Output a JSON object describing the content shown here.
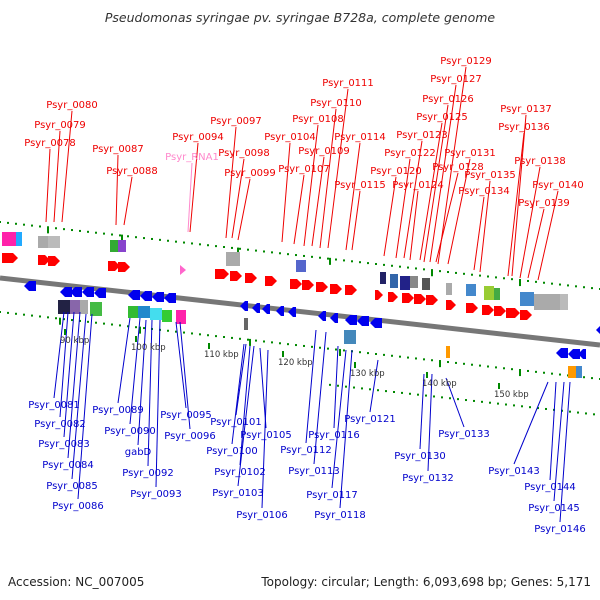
{
  "header": {
    "title": "Pseudomonas syringae pv. syringae B728a, complete genome"
  },
  "footer": {
    "accession": "Accession: NC_007005",
    "summary": "Topology: circular; Length: 6,093,698 bp; Genes: 5,171"
  },
  "colors": {
    "forward_arrow": "#ff0000",
    "reverse_arrow": "#0000ee",
    "forward_label": "#ee0000",
    "reverse_label": "#0000cc",
    "rna_label": "#ff88cc",
    "backbone": "#777777",
    "tick": "#008800"
  },
  "scale_labels": [
    "90 kbp",
    "100 kbp",
    "110 kbp",
    "120 kbp",
    "130 kbp",
    "140 kbp",
    "150 kbp"
  ],
  "forward_genes": [
    {
      "label": "Psyr_0078"
    },
    {
      "label": "Psyr_0079"
    },
    {
      "label": "Psyr_0080"
    },
    {
      "label": "Psyr_0087"
    },
    {
      "label": "Psyr_0088"
    },
    {
      "label": "Psyr_RNA1",
      "rna": true
    },
    {
      "label": "Psyr_0094"
    },
    {
      "label": "Psyr_0097"
    },
    {
      "label": "Psyr_0098"
    },
    {
      "label": "Psyr_0099"
    },
    {
      "label": "Psyr_0104"
    },
    {
      "label": "Psyr_0107"
    },
    {
      "label": "Psyr_0108"
    },
    {
      "label": "Psyr_0109"
    },
    {
      "label": "Psyr_0110"
    },
    {
      "label": "Psyr_0111"
    },
    {
      "label": "Psyr_0114"
    },
    {
      "label": "Psyr_0115"
    },
    {
      "label": "Psyr_0120"
    },
    {
      "label": "Psyr_0122"
    },
    {
      "label": "Psyr_0123"
    },
    {
      "label": "Psyr_0124"
    },
    {
      "label": "Psyr_0125"
    },
    {
      "label": "Psyr_0126"
    },
    {
      "label": "Psyr_0127"
    },
    {
      "label": "Psyr_0128"
    },
    {
      "label": "Psyr_0129"
    },
    {
      "label": "Psyr_0131"
    },
    {
      "label": "Psyr_0134"
    },
    {
      "label": "Psyr_0135"
    },
    {
      "label": "Psyr_0136"
    },
    {
      "label": "Psyr_0137"
    },
    {
      "label": "Psyr_0138"
    },
    {
      "label": "Psyr_0139"
    },
    {
      "label": "Psyr_0140"
    }
  ],
  "reverse_genes": [
    {
      "label": "Psyr_0081"
    },
    {
      "label": "Psyr_0082"
    },
    {
      "label": "Psyr_0083"
    },
    {
      "label": "Psyr_0084"
    },
    {
      "label": "Psyr_0085"
    },
    {
      "label": "Psyr_0086"
    },
    {
      "label": "Psyr_0089"
    },
    {
      "label": "Psyr_0090"
    },
    {
      "label": "gabD"
    },
    {
      "label": "Psyr_0092"
    },
    {
      "label": "Psyr_0093"
    },
    {
      "label": "Psyr_0095"
    },
    {
      "label": "Psyr_0096"
    },
    {
      "label": "Psyr_0100"
    },
    {
      "label": "Psyr_0101"
    },
    {
      "label": "Psyr_0102"
    },
    {
      "label": "Psyr_0103"
    },
    {
      "label": "Psyr_0105"
    },
    {
      "label": "Psyr_0106"
    },
    {
      "label": "Psyr_0112"
    },
    {
      "label": "Psyr_0113"
    },
    {
      "label": "Psyr_0116"
    },
    {
      "label": "Psyr_0117"
    },
    {
      "label": "Psyr_0118"
    },
    {
      "label": "Psyr_0121"
    },
    {
      "label": "Psyr_0130"
    },
    {
      "label": "Psyr_0132"
    },
    {
      "label": "Psyr_0133"
    },
    {
      "label": "Psyr_0143"
    },
    {
      "label": "Psyr_0144"
    },
    {
      "label": "Psyr_0145"
    },
    {
      "label": "Psyr_0146"
    }
  ]
}
